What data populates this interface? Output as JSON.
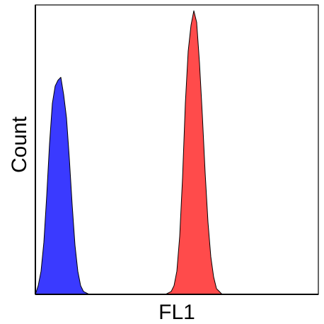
{
  "chart_data": {
    "type": "area",
    "title": "",
    "xlabel": "FL1",
    "ylabel": "Count",
    "xlim": [
      0,
      100
    ],
    "ylim": [
      0,
      100
    ],
    "grid": false,
    "legend": "none",
    "series": [
      {
        "color": "#3a3aff",
        "x": [
          0,
          1,
          2,
          3,
          4,
          5,
          6,
          7,
          8,
          9,
          10,
          11,
          12,
          13,
          14,
          15,
          16,
          17,
          18,
          19,
          20,
          21,
          22,
          23,
          24,
          25
        ],
        "values": [
          0,
          3,
          8,
          18,
          34,
          52,
          66,
          72,
          74,
          75,
          69,
          61,
          47,
          31,
          17,
          8,
          3,
          1,
          0.5,
          0,
          0,
          0,
          0,
          0,
          0,
          0
        ]
      },
      {
        "color": "#ff4b4b",
        "x": [
          45,
          46,
          47,
          48,
          49,
          50,
          51,
          52,
          53,
          54,
          55,
          56,
          57,
          58,
          59,
          60,
          61,
          62,
          63,
          64,
          65,
          66,
          67,
          68,
          69,
          70
        ],
        "values": [
          0,
          0,
          0.5,
          1,
          3,
          8,
          20,
          40,
          66,
          84,
          93,
          98,
          94,
          80,
          62,
          42,
          25,
          13,
          6,
          2,
          1,
          0,
          0,
          0,
          0,
          0
        ]
      }
    ]
  }
}
